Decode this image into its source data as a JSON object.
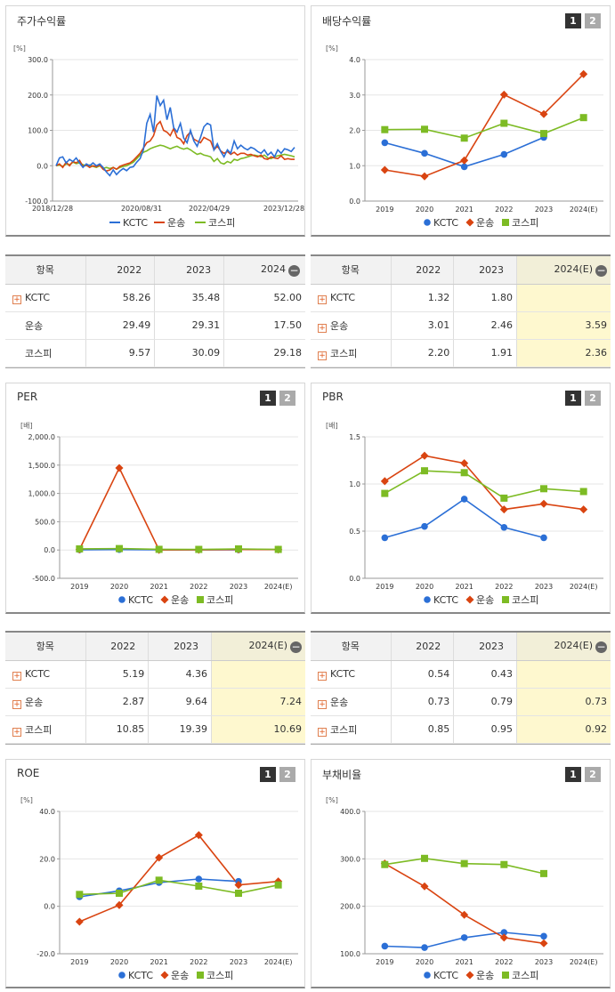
{
  "legend": [
    "KCTC",
    "운송",
    "코스피"
  ],
  "colors": {
    "kctc": "#2b6fd6",
    "transport": "#d94411",
    "kospi": "#7dbb24"
  },
  "panels": {
    "price": {
      "title": "주가수익률"
    },
    "dividend": {
      "title": "배당수익률",
      "buttons": [
        "1",
        "2"
      ]
    },
    "per": {
      "title": "PER",
      "buttons": [
        "1",
        "2"
      ]
    },
    "pbr": {
      "title": "PBR",
      "buttons": [
        "1",
        "2"
      ]
    },
    "roe": {
      "title": "ROE",
      "buttons": [
        "1",
        "2"
      ]
    },
    "debt": {
      "title": "부채비율",
      "buttons": [
        "1",
        "2"
      ]
    }
  },
  "tables": {
    "price": {
      "headers": [
        "항목",
        "2022",
        "2023",
        "2024"
      ],
      "rows": [
        {
          "label": "KCTC",
          "values": [
            "58.26",
            "35.48",
            "52.00"
          ]
        },
        {
          "label": "운송",
          "values": [
            "29.49",
            "29.31",
            "17.50"
          ]
        },
        {
          "label": "코스피",
          "values": [
            "9.57",
            "30.09",
            "29.18"
          ]
        }
      ]
    },
    "dividend": {
      "headers": [
        "항목",
        "2022",
        "2023",
        "2024(E)"
      ],
      "rows": [
        {
          "label": "KCTC",
          "values": [
            "1.32",
            "1.80",
            ""
          ]
        },
        {
          "label": "운송",
          "values": [
            "3.01",
            "2.46",
            "3.59"
          ]
        },
        {
          "label": "코스피",
          "values": [
            "2.20",
            "1.91",
            "2.36"
          ]
        }
      ]
    },
    "per": {
      "headers": [
        "항목",
        "2022",
        "2023",
        "2024(E)"
      ],
      "rows": [
        {
          "label": "KCTC",
          "values": [
            "5.19",
            "4.36",
            ""
          ]
        },
        {
          "label": "운송",
          "values": [
            "2.87",
            "9.64",
            "7.24"
          ]
        },
        {
          "label": "코스피",
          "values": [
            "10.85",
            "19.39",
            "10.69"
          ]
        }
      ]
    },
    "pbr": {
      "headers": [
        "항목",
        "2022",
        "2023",
        "2024(E)"
      ],
      "rows": [
        {
          "label": "KCTC",
          "values": [
            "0.54",
            "0.43",
            ""
          ]
        },
        {
          "label": "운송",
          "values": [
            "0.73",
            "0.79",
            "0.73"
          ]
        },
        {
          "label": "코스피",
          "values": [
            "0.85",
            "0.95",
            "0.92"
          ]
        }
      ]
    }
  },
  "chart_data": [
    {
      "id": "price",
      "type": "line",
      "ylabel": "[%]",
      "yticks": [
        "300.0",
        "200.0",
        "100.0",
        "0.0",
        "-100.0"
      ],
      "ylim": [
        -100,
        300
      ],
      "xticks": [
        "2018/12/28",
        "2020/08/31",
        "2022/04/29",
        "2023/12/28"
      ],
      "series": [
        {
          "name": "KCTC",
          "values": [
            0,
            22,
            25,
            8,
            18,
            12,
            22,
            8,
            -5,
            5,
            0,
            8,
            0,
            5,
            -5,
            -18,
            -28,
            -12,
            -25,
            -15,
            -8,
            -14,
            -5,
            -3,
            10,
            20,
            45,
            120,
            145,
            95,
            198,
            170,
            185,
            130,
            165,
            108,
            95,
            120,
            78,
            65,
            100,
            70,
            55,
            80,
            110,
            120,
            115,
            45,
            62,
            40,
            25,
            45,
            35,
            70,
            48,
            58,
            50,
            45,
            52,
            48,
            40,
            35,
            45,
            30,
            38,
            25,
            45,
            35,
            48,
            45,
            40,
            52
          ]
        },
        {
          "name": "운송",
          "values": [
            0,
            5,
            -5,
            10,
            0,
            12,
            8,
            15,
            -2,
            2,
            -5,
            0,
            -3,
            2,
            -10,
            -15,
            -12,
            -5,
            -10,
            -2,
            2,
            5,
            8,
            15,
            25,
            35,
            50,
            65,
            70,
            85,
            115,
            125,
            100,
            95,
            85,
            105,
            80,
            75,
            62,
            85,
            95,
            75,
            70,
            65,
            80,
            75,
            70,
            45,
            55,
            42,
            35,
            40,
            32,
            38,
            30,
            35,
            35,
            30,
            32,
            28,
            25,
            30,
            20,
            18,
            25,
            22,
            20,
            28,
            18,
            20,
            18,
            18
          ]
        },
        {
          "name": "코스피",
          "values": [
            0,
            2,
            -2,
            5,
            3,
            10,
            6,
            8,
            3,
            0,
            2,
            -2,
            -5,
            0,
            -8,
            -5,
            -8,
            -5,
            -10,
            -5,
            -2,
            0,
            5,
            10,
            20,
            30,
            38,
            42,
            48,
            52,
            55,
            58,
            56,
            52,
            48,
            52,
            55,
            50,
            47,
            50,
            45,
            38,
            32,
            35,
            30,
            28,
            25,
            12,
            20,
            8,
            5,
            12,
            8,
            18,
            15,
            20,
            22,
            25,
            28,
            30,
            28,
            25,
            30,
            22,
            20,
            25,
            28,
            30,
            32,
            30,
            28,
            25
          ]
        }
      ]
    },
    {
      "id": "dividend",
      "type": "line",
      "ylabel": "[%]",
      "categories": [
        "2019",
        "2020",
        "2021",
        "2022",
        "2023",
        "2024(E)"
      ],
      "yticks": [
        "4.0",
        "3.0",
        "2.0",
        "1.0",
        "0.0"
      ],
      "ylim": [
        0,
        4
      ],
      "series": [
        {
          "name": "KCTC",
          "values": [
            1.65,
            1.35,
            0.97,
            1.32,
            1.8,
            null
          ]
        },
        {
          "name": "운송",
          "values": [
            0.88,
            0.7,
            1.15,
            3.01,
            2.46,
            3.59
          ]
        },
        {
          "name": "코스피",
          "values": [
            2.02,
            2.03,
            1.78,
            2.2,
            1.91,
            2.36
          ]
        }
      ]
    },
    {
      "id": "per",
      "type": "line",
      "ylabel": "[배]",
      "categories": [
        "2019",
        "2020",
        "2021",
        "2022",
        "2023",
        "2024(E)"
      ],
      "yticks": [
        "2,000.0",
        "1,500.0",
        "1,000.0",
        "500.0",
        "0.0",
        "-500.0"
      ],
      "ylim": [
        -500,
        2000
      ],
      "series": [
        {
          "name": "KCTC",
          "values": [
            5,
            8,
            5,
            5.19,
            4.36,
            null
          ]
        },
        {
          "name": "운송",
          "values": [
            10,
            1450,
            2,
            2.87,
            9.64,
            7.24
          ]
        },
        {
          "name": "코스피",
          "values": [
            20,
            25,
            12,
            10.85,
            19.39,
            10.69
          ]
        }
      ]
    },
    {
      "id": "pbr",
      "type": "line",
      "ylabel": "[배]",
      "categories": [
        "2019",
        "2020",
        "2021",
        "2022",
        "2023",
        "2024(E)"
      ],
      "yticks": [
        "1.5",
        "1.0",
        "0.5",
        "0.0"
      ],
      "ylim": [
        0,
        1.5
      ],
      "series": [
        {
          "name": "KCTC",
          "values": [
            0.43,
            0.55,
            0.84,
            0.54,
            0.43,
            null
          ]
        },
        {
          "name": "운송",
          "values": [
            1.03,
            1.3,
            1.22,
            0.73,
            0.79,
            0.73
          ]
        },
        {
          "name": "코스피",
          "values": [
            0.9,
            1.14,
            1.12,
            0.85,
            0.95,
            0.92
          ]
        }
      ]
    },
    {
      "id": "roe",
      "type": "line",
      "ylabel": "[%]",
      "categories": [
        "2019",
        "2020",
        "2021",
        "2022",
        "2023",
        "2024(E)"
      ],
      "yticks": [
        "40.0",
        "20.0",
        "0.0",
        "-20.0"
      ],
      "ylim": [
        -20,
        40
      ],
      "series": [
        {
          "name": "KCTC",
          "values": [
            4,
            6.5,
            10,
            11.5,
            10.5,
            null
          ]
        },
        {
          "name": "운송",
          "values": [
            -6.5,
            0.5,
            20.5,
            30,
            9,
            10.5
          ]
        },
        {
          "name": "코스피",
          "values": [
            5,
            5.5,
            11,
            8.5,
            5.5,
            9
          ]
        }
      ]
    },
    {
      "id": "debt",
      "type": "line",
      "ylabel": "[%]",
      "categories": [
        "2019",
        "2020",
        "2021",
        "2022",
        "2023",
        "2024(E)"
      ],
      "yticks": [
        "400.0",
        "300.0",
        "200.0",
        "100.0"
      ],
      "ylim": [
        100,
        400
      ],
      "series": [
        {
          "name": "KCTC",
          "values": [
            116,
            113,
            134,
            145,
            137,
            null
          ]
        },
        {
          "name": "운송",
          "values": [
            290,
            242,
            182,
            134,
            122,
            null
          ]
        },
        {
          "name": "코스피",
          "values": [
            288,
            301,
            290,
            288,
            269,
            null
          ]
        }
      ]
    }
  ]
}
